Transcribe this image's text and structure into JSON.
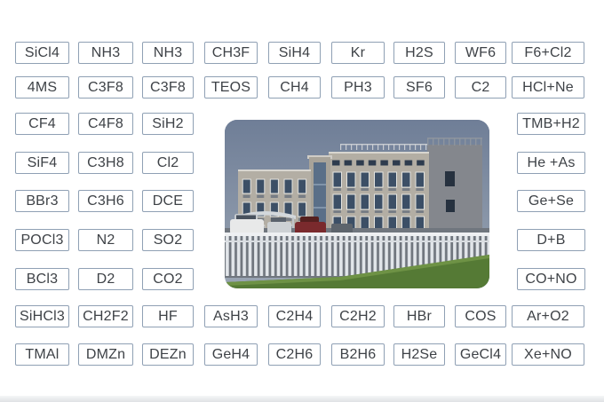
{
  "colors": {
    "background": "#ffffff",
    "box_border": "#8fa0b4",
    "box_text": "#3e4247",
    "photo_sky_top": "#6f7e97",
    "photo_sky_bottom": "#9aa5b3",
    "photo_facade": "#b3aea4",
    "photo_side_wall": "#84878d",
    "photo_window": "#3c4f66",
    "photo_fence": "#e2e6ea",
    "photo_grass": "#557a35"
  },
  "photo": {
    "description": "company factory office building, grey 3-storey facade with dark windows, white picket fence, parked cars, green lawn, blue-grey sky"
  },
  "gas_labels": [
    {
      "text": "SiCl4",
      "row": 1,
      "col": 1
    },
    {
      "text": "NH3",
      "row": 1,
      "col": 2
    },
    {
      "text": "NH3",
      "row": 1,
      "col": 3
    },
    {
      "text": "CH3F",
      "row": 1,
      "col": 4
    },
    {
      "text": "SiH4",
      "row": 1,
      "col": 5
    },
    {
      "text": "Kr",
      "row": 1,
      "col": 6
    },
    {
      "text": "H2S",
      "row": 1,
      "col": 7
    },
    {
      "text": "WF6",
      "row": 1,
      "col": 8
    },
    {
      "text": "F6+Cl2",
      "row": 1,
      "col": 9
    },
    {
      "text": "4MS",
      "row": 2,
      "col": 1
    },
    {
      "text": "C3F8",
      "row": 2,
      "col": 2
    },
    {
      "text": "C3F8",
      "row": 2,
      "col": 3
    },
    {
      "text": "TEOS",
      "row": 2,
      "col": 4
    },
    {
      "text": "CH4",
      "row": 2,
      "col": 5
    },
    {
      "text": "PH3",
      "row": 2,
      "col": 6
    },
    {
      "text": "SF6",
      "row": 2,
      "col": 7
    },
    {
      "text": "C2",
      "row": 2,
      "col": 8
    },
    {
      "text": "HCl+Ne",
      "row": 2,
      "col": 9
    },
    {
      "text": "CF4",
      "row": 3,
      "col": 1
    },
    {
      "text": "C4F8",
      "row": 3,
      "col": 2
    },
    {
      "text": "SiH2",
      "row": 3,
      "col": 3
    },
    {
      "text": "TMB+H2",
      "row": 3,
      "col": 9
    },
    {
      "text": "SiF4",
      "row": 4,
      "col": 1
    },
    {
      "text": "C3H8",
      "row": 4,
      "col": 2
    },
    {
      "text": "Cl2",
      "row": 4,
      "col": 3
    },
    {
      "text": "He +As",
      "row": 4,
      "col": 9
    },
    {
      "text": "BBr3",
      "row": 5,
      "col": 1
    },
    {
      "text": "C3H6",
      "row": 5,
      "col": 2
    },
    {
      "text": "DCE",
      "row": 5,
      "col": 3
    },
    {
      "text": "Ge+Se",
      "row": 5,
      "col": 9
    },
    {
      "text": "POCl3",
      "row": 6,
      "col": 1
    },
    {
      "text": "N2",
      "row": 6,
      "col": 2
    },
    {
      "text": "SO2",
      "row": 6,
      "col": 3
    },
    {
      "text": "D+B",
      "row": 6,
      "col": 9
    },
    {
      "text": "BCl3",
      "row": 7,
      "col": 1
    },
    {
      "text": "D2",
      "row": 7,
      "col": 2
    },
    {
      "text": "CO2",
      "row": 7,
      "col": 3
    },
    {
      "text": "CO+NO",
      "row": 7,
      "col": 9
    },
    {
      "text": "SiHCl3",
      "row": 8,
      "col": 1
    },
    {
      "text": "CH2F2",
      "row": 8,
      "col": 2
    },
    {
      "text": "HF",
      "row": 8,
      "col": 3
    },
    {
      "text": "AsH3",
      "row": 8,
      "col": 4
    },
    {
      "text": "C2H4",
      "row": 8,
      "col": 5
    },
    {
      "text": "C2H2",
      "row": 8,
      "col": 6
    },
    {
      "text": "HBr",
      "row": 8,
      "col": 7
    },
    {
      "text": "COS",
      "row": 8,
      "col": 8
    },
    {
      "text": "Ar+O2",
      "row": 8,
      "col": 9
    },
    {
      "text": "TMAl",
      "row": 9,
      "col": 1
    },
    {
      "text": "DMZn",
      "row": 9,
      "col": 2
    },
    {
      "text": "DEZn",
      "row": 9,
      "col": 3
    },
    {
      "text": "GeH4",
      "row": 9,
      "col": 4
    },
    {
      "text": "C2H6",
      "row": 9,
      "col": 5
    },
    {
      "text": "B2H6",
      "row": 9,
      "col": 6
    },
    {
      "text": "H2Se",
      "row": 9,
      "col": 7
    },
    {
      "text": "GeCl4",
      "row": 9,
      "col": 8
    },
    {
      "text": "Xe+NO",
      "row": 9,
      "col": 9
    }
  ]
}
